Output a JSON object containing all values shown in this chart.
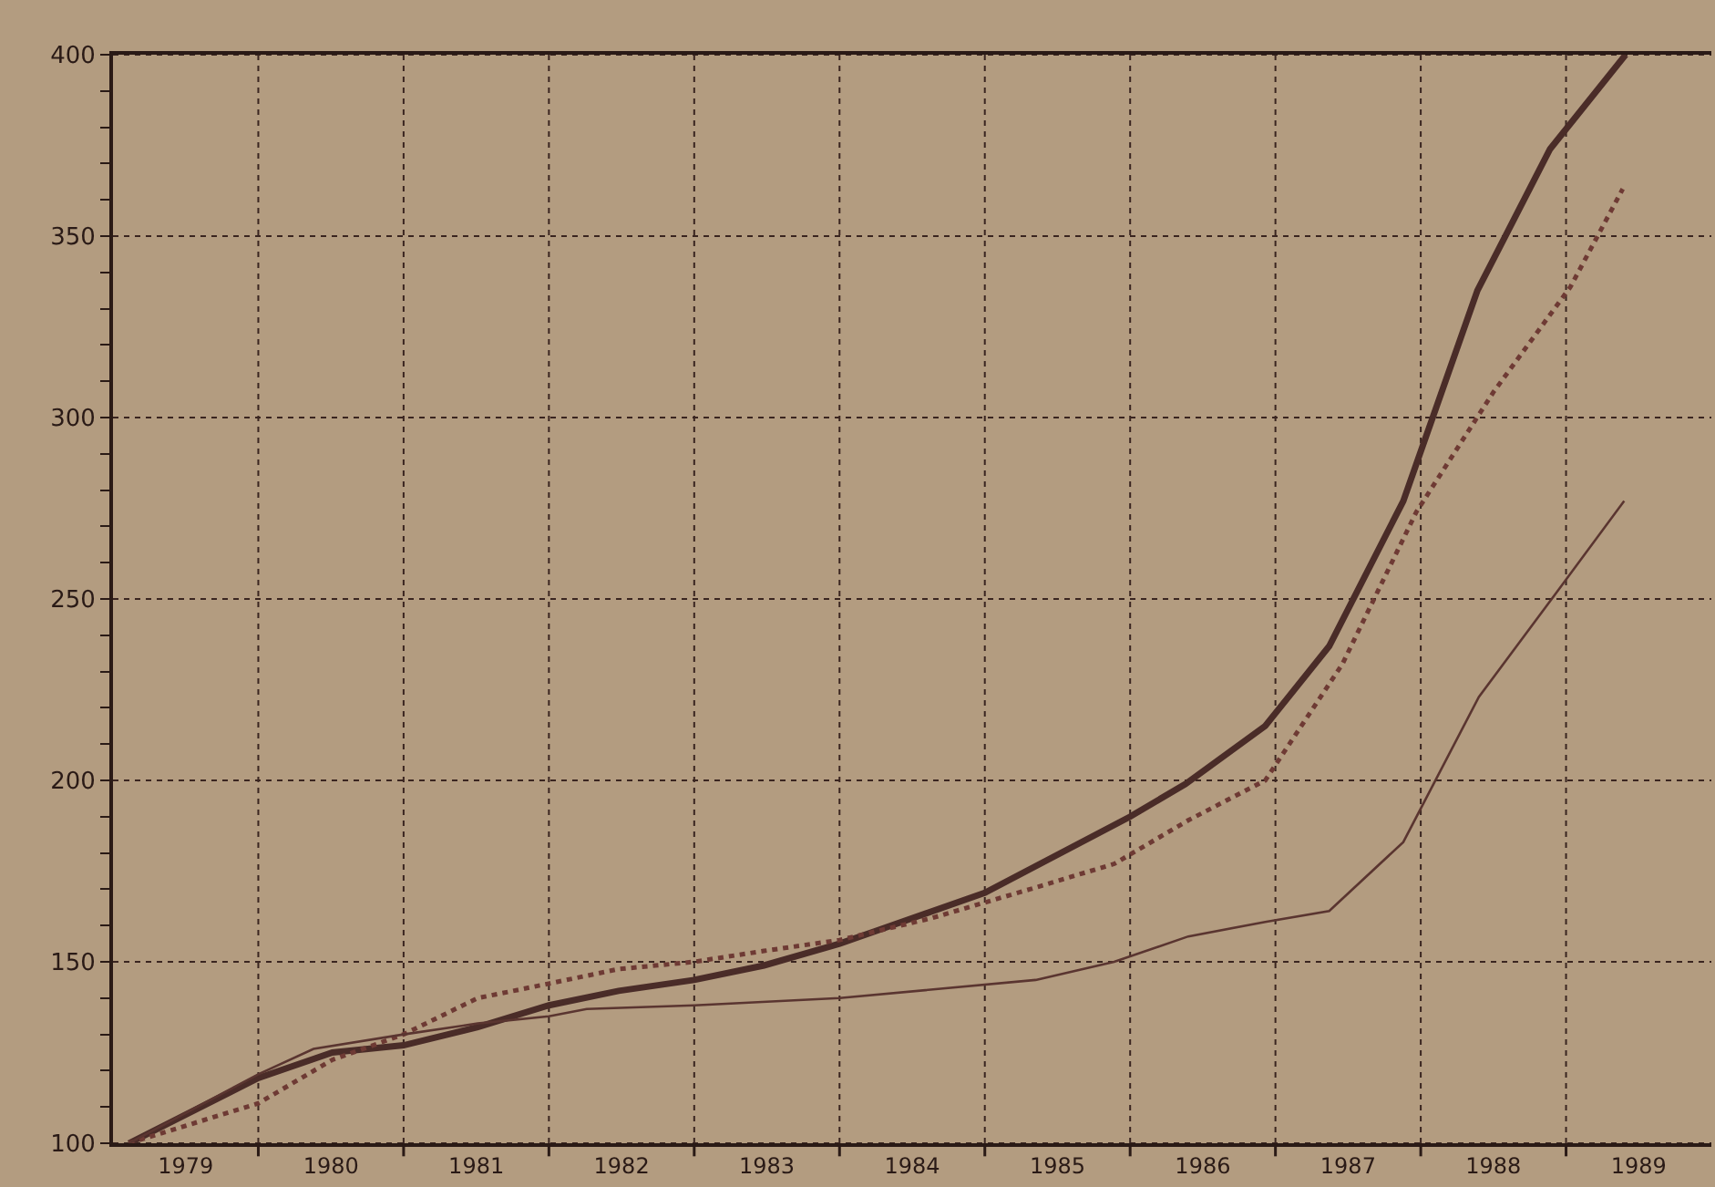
{
  "chart_data": {
    "type": "line",
    "xlim": [
      1979,
      1990
    ],
    "xticks": [
      {
        "value": 1979.5,
        "label": "1979"
      },
      {
        "value": 1980.5,
        "label": "1980"
      },
      {
        "value": 1981.5,
        "label": "1981"
      },
      {
        "value": 1982.5,
        "label": "1982"
      },
      {
        "value": 1983.5,
        "label": "1983"
      },
      {
        "value": 1984.5,
        "label": "1984"
      },
      {
        "value": 1985.5,
        "label": "1985"
      },
      {
        "value": 1986.5,
        "label": "1986"
      },
      {
        "value": 1987.5,
        "label": "1987"
      },
      {
        "value": 1988.5,
        "label": "1988"
      },
      {
        "value": 1989.5,
        "label": "1989"
      },
      {
        "value": 1980,
        "label": null
      },
      {
        "value": 1981,
        "label": null
      },
      {
        "value": 1982,
        "label": null
      },
      {
        "value": 1983,
        "label": null
      },
      {
        "value": 1984,
        "label": null
      },
      {
        "value": 1985,
        "label": null
      },
      {
        "value": 1986,
        "label": null
      },
      {
        "value": 1987,
        "label": null
      },
      {
        "value": 1988,
        "label": null
      },
      {
        "value": 1989,
        "label": null
      }
    ],
    "ylim": [
      100,
      400
    ],
    "yticks": [
      100,
      150,
      200,
      250,
      300,
      350,
      400,
      {
        "value": 110,
        "label": null
      },
      {
        "value": 120,
        "label": null
      },
      {
        "value": 130,
        "label": null
      },
      {
        "value": 140,
        "label": null
      },
      {
        "value": 160,
        "label": null
      },
      {
        "value": 170,
        "label": null
      },
      {
        "value": 180,
        "label": null
      },
      {
        "value": 190,
        "label": null
      },
      {
        "value": 210,
        "label": null
      },
      {
        "value": 220,
        "label": null
      },
      {
        "value": 230,
        "label": null
      },
      {
        "value": 240,
        "label": null
      },
      {
        "value": 260,
        "label": null
      },
      {
        "value": 270,
        "label": null
      },
      {
        "value": 280,
        "label": null
      },
      {
        "value": 290,
        "label": null
      },
      {
        "value": 310,
        "label": null
      },
      {
        "value": 320,
        "label": null
      },
      {
        "value": 330,
        "label": null
      },
      {
        "value": 340,
        "label": null
      },
      {
        "value": 360,
        "label": null
      },
      {
        "value": 370,
        "label": null
      },
      {
        "value": 380,
        "label": null
      },
      {
        "value": 390,
        "label": null
      }
    ],
    "grid": true,
    "marker": "none",
    "series": [
      {
        "color": "#4a2c28",
        "line_style": "solid",
        "x": [
          1979.11,
          1980.0,
          1980.51,
          1981.0,
          1981.51,
          1982.0,
          1982.48,
          1983.0,
          1983.48,
          1984.0,
          1985.0,
          1986.0,
          1986.38,
          1986.93,
          1987.37,
          1987.88,
          1988.39,
          1988.89,
          1989.41
        ],
        "values": [
          100,
          118,
          125,
          127,
          132,
          138,
          142,
          145,
          149,
          155,
          169,
          190,
          199,
          215,
          237,
          277,
          335,
          374,
          400
        ]
      },
      {
        "color": "#6e3a34",
        "line_style": "dotted",
        "x": [
          1979.11,
          1980.0,
          1980.51,
          1981.0,
          1981.51,
          1982.0,
          1982.48,
          1983.0,
          1983.48,
          1984.0,
          1984.63,
          1985.31,
          1985.89,
          1986.4,
          1986.93,
          1987.46,
          1987.97,
          1988.5,
          1989.03,
          1989.39
        ],
        "values": [
          100,
          111,
          123,
          130,
          140,
          144,
          148,
          150,
          153,
          156,
          162,
          170,
          177,
          189,
          200,
          232,
          274,
          307,
          336,
          363
        ]
      },
      {
        "color": "#5a3530",
        "line_style": "solid",
        "x": [
          1979.11,
          1980.0,
          1980.38,
          1981.0,
          1981.51,
          1982.0,
          1982.26,
          1983.0,
          1984.0,
          1985.35,
          1985.89,
          1986.4,
          1986.93,
          1987.37,
          1987.88,
          1988.4,
          1988.92,
          1989.4
        ],
        "values": [
          100,
          119,
          126,
          130,
          133,
          135,
          137,
          138,
          140,
          145,
          150,
          157,
          161,
          164,
          183,
          223,
          251,
          277
        ]
      }
    ]
  }
}
